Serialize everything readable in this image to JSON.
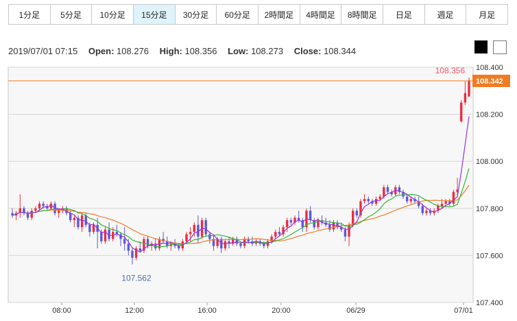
{
  "timeframes": [
    {
      "label": "1分足",
      "active": false
    },
    {
      "label": "5分足",
      "active": false
    },
    {
      "label": "10分足",
      "active": false
    },
    {
      "label": "15分足",
      "active": true
    },
    {
      "label": "30分足",
      "active": false
    },
    {
      "label": "60分足",
      "active": false
    },
    {
      "label": "2時間足",
      "active": false
    },
    {
      "label": "4時間足",
      "active": false
    },
    {
      "label": "8時間足",
      "active": false
    },
    {
      "label": "日足",
      "active": false
    },
    {
      "label": "週足",
      "active": false
    },
    {
      "label": "月足",
      "active": false
    }
  ],
  "ohlc": {
    "datetime": "2019/07/01 07:15",
    "open_label": "Open:",
    "open": "108.276",
    "high_label": "High:",
    "high": "108.356",
    "low_label": "Low:",
    "low": "108.273",
    "close_label": "Close:",
    "close": "108.344"
  },
  "colors": {
    "up": "#ee2d3c",
    "down": "#5a58d8",
    "ma_short": "#9b30d9",
    "ma_mid": "#2eb82e",
    "ma_long": "#f07b23",
    "price_line": "#f07b23",
    "badge": "#f07b23",
    "high_annotation": "#f05a6e",
    "low_annotation": "#4a6fb5"
  },
  "chart_data": {
    "type": "candlestick",
    "y_ticks": [
      "107.400",
      "107.600",
      "107.800",
      "108.000",
      "108.200",
      "108.400"
    ],
    "ylim": [
      107.4,
      108.4
    ],
    "x_ticks": [
      "08:00",
      "12:00",
      "16:00",
      "20:00",
      "06/29",
      "07/01"
    ],
    "current_price": "108.342",
    "high_annotation": "108.356",
    "low_annotation": "107.562",
    "grid": true,
    "candles": [
      [
        107.78,
        107.8,
        107.76,
        107.77
      ],
      [
        107.77,
        107.79,
        107.75,
        107.78
      ],
      [
        107.78,
        107.86,
        107.76,
        107.8
      ],
      [
        107.8,
        107.81,
        107.77,
        107.78
      ],
      [
        107.78,
        107.79,
        107.75,
        107.76
      ],
      [
        107.76,
        107.8,
        107.75,
        107.79
      ],
      [
        107.79,
        107.81,
        107.78,
        107.8
      ],
      [
        107.8,
        107.83,
        107.79,
        107.82
      ],
      [
        107.82,
        107.83,
        107.8,
        107.81
      ],
      [
        107.81,
        107.82,
        107.79,
        107.8
      ],
      [
        107.8,
        107.83,
        107.79,
        107.82
      ],
      [
        107.82,
        107.83,
        107.77,
        107.78
      ],
      [
        107.78,
        107.8,
        107.76,
        107.79
      ],
      [
        107.79,
        107.81,
        107.78,
        107.8
      ],
      [
        107.8,
        107.81,
        107.77,
        107.78
      ],
      [
        107.78,
        107.79,
        107.74,
        107.75
      ],
      [
        107.75,
        107.77,
        107.72,
        107.76
      ],
      [
        107.76,
        107.77,
        107.71,
        107.72
      ],
      [
        107.72,
        107.78,
        107.7,
        107.77
      ],
      [
        107.77,
        107.78,
        107.72,
        107.73
      ],
      [
        107.73,
        107.74,
        107.68,
        107.7
      ],
      [
        107.7,
        107.74,
        107.69,
        107.73
      ],
      [
        107.73,
        107.76,
        107.63,
        107.7
      ],
      [
        107.7,
        107.71,
        107.65,
        107.66
      ],
      [
        107.66,
        107.72,
        107.65,
        107.71
      ],
      [
        107.71,
        107.74,
        107.66,
        107.67
      ],
      [
        107.67,
        107.72,
        107.66,
        107.7
      ],
      [
        107.7,
        107.73,
        107.68,
        107.69
      ],
      [
        107.69,
        107.7,
        107.64,
        107.67
      ],
      [
        107.67,
        107.72,
        107.62,
        107.65
      ],
      [
        107.65,
        107.67,
        107.6,
        107.62
      ],
      [
        107.62,
        107.63,
        107.562,
        107.59
      ],
      [
        107.59,
        107.64,
        107.58,
        107.63
      ],
      [
        107.63,
        107.66,
        107.61,
        107.62
      ],
      [
        107.62,
        107.68,
        107.61,
        107.67
      ],
      [
        107.67,
        107.68,
        107.63,
        107.64
      ],
      [
        107.64,
        107.66,
        107.62,
        107.65
      ],
      [
        107.65,
        107.67,
        107.62,
        107.63
      ],
      [
        107.63,
        107.68,
        107.62,
        107.67
      ],
      [
        107.67,
        107.7,
        107.65,
        107.66
      ],
      [
        107.66,
        107.68,
        107.63,
        107.64
      ],
      [
        107.64,
        107.66,
        107.62,
        107.65
      ],
      [
        107.65,
        107.67,
        107.63,
        107.64
      ],
      [
        107.64,
        107.65,
        107.62,
        107.63
      ],
      [
        107.63,
        107.67,
        107.62,
        107.66
      ],
      [
        107.66,
        107.7,
        107.65,
        107.69
      ],
      [
        107.69,
        107.72,
        107.66,
        107.7
      ],
      [
        107.7,
        107.74,
        107.68,
        107.73
      ],
      [
        107.73,
        107.77,
        107.65,
        107.68
      ],
      [
        107.68,
        107.76,
        107.67,
        107.75
      ],
      [
        107.75,
        107.76,
        107.68,
        107.69
      ],
      [
        107.69,
        107.7,
        107.65,
        107.67
      ],
      [
        107.67,
        107.69,
        107.62,
        107.64
      ],
      [
        107.64,
        107.68,
        107.63,
        107.67
      ],
      [
        107.67,
        107.68,
        107.61,
        107.63
      ],
      [
        107.63,
        107.67,
        107.62,
        107.66
      ],
      [
        107.66,
        107.68,
        107.63,
        107.65
      ],
      [
        107.65,
        107.68,
        107.64,
        107.67
      ],
      [
        107.67,
        107.68,
        107.64,
        107.65
      ],
      [
        107.65,
        107.66,
        107.63,
        107.64
      ],
      [
        107.64,
        107.68,
        107.63,
        107.67
      ],
      [
        107.67,
        107.68,
        107.65,
        107.66
      ],
      [
        107.66,
        107.68,
        107.64,
        107.65
      ],
      [
        107.65,
        107.67,
        107.64,
        107.66
      ],
      [
        107.66,
        107.67,
        107.64,
        107.65
      ],
      [
        107.65,
        107.66,
        107.63,
        107.64
      ],
      [
        107.64,
        107.67,
        107.63,
        107.66
      ],
      [
        107.66,
        107.69,
        107.65,
        107.68
      ],
      [
        107.68,
        107.71,
        107.67,
        107.7
      ],
      [
        107.7,
        107.72,
        107.68,
        107.69
      ],
      [
        107.69,
        107.73,
        107.68,
        107.72
      ],
      [
        107.72,
        107.76,
        107.7,
        107.75
      ],
      [
        107.75,
        107.76,
        107.73,
        107.74
      ],
      [
        107.74,
        107.77,
        107.73,
        107.76
      ],
      [
        107.76,
        107.79,
        107.74,
        107.75
      ],
      [
        107.75,
        107.76,
        107.7,
        107.72
      ],
      [
        107.72,
        107.8,
        107.7,
        107.79
      ],
      [
        107.79,
        107.81,
        107.74,
        107.75
      ],
      [
        107.75,
        107.76,
        107.71,
        107.72
      ],
      [
        107.72,
        107.76,
        107.71,
        107.75
      ],
      [
        107.75,
        107.77,
        107.73,
        107.74
      ],
      [
        107.74,
        107.76,
        107.72,
        107.73
      ],
      [
        107.73,
        107.75,
        107.7,
        107.71
      ],
      [
        107.71,
        107.75,
        107.7,
        107.74
      ],
      [
        107.74,
        107.75,
        107.71,
        107.72
      ],
      [
        107.72,
        107.74,
        107.7,
        107.71
      ],
      [
        107.71,
        107.72,
        107.66,
        107.68
      ],
      [
        107.68,
        107.74,
        107.64,
        107.73
      ],
      [
        107.73,
        107.8,
        107.72,
        107.79
      ],
      [
        107.79,
        107.8,
        107.76,
        107.77
      ],
      [
        107.77,
        107.84,
        107.76,
        107.83
      ],
      [
        107.83,
        107.86,
        107.82,
        107.84
      ],
      [
        107.84,
        107.85,
        107.82,
        107.83
      ],
      [
        107.83,
        107.84,
        107.81,
        107.82
      ],
      [
        107.82,
        107.85,
        107.81,
        107.84
      ],
      [
        107.84,
        107.86,
        107.83,
        107.85
      ],
      [
        107.85,
        107.9,
        107.84,
        107.89
      ],
      [
        107.89,
        107.9,
        107.86,
        107.87
      ],
      [
        107.87,
        107.88,
        107.85,
        107.86
      ],
      [
        107.86,
        107.9,
        107.85,
        107.89
      ],
      [
        107.89,
        107.9,
        107.86,
        107.87
      ],
      [
        107.87,
        107.88,
        107.84,
        107.85
      ],
      [
        107.85,
        107.86,
        107.82,
        107.83
      ],
      [
        107.83,
        107.85,
        107.82,
        107.84
      ],
      [
        107.84,
        107.85,
        107.82,
        107.83
      ],
      [
        107.83,
        107.85,
        107.8,
        107.81
      ],
      [
        107.81,
        107.82,
        107.77,
        107.78
      ],
      [
        107.78,
        107.8,
        107.77,
        107.79
      ],
      [
        107.79,
        107.8,
        107.77,
        107.78
      ],
      [
        107.78,
        107.8,
        107.77,
        107.79
      ],
      [
        107.79,
        107.82,
        107.78,
        107.81
      ],
      [
        107.81,
        107.84,
        107.8,
        107.82
      ],
      [
        107.82,
        107.84,
        107.81,
        107.83
      ],
      [
        107.83,
        107.84,
        107.81,
        107.82
      ],
      [
        107.82,
        107.88,
        107.81,
        107.87
      ],
      [
        107.87,
        107.93,
        107.85,
        107.88
      ],
      [
        108.17,
        108.26,
        108.165,
        108.25
      ],
      [
        108.25,
        108.34,
        108.24,
        108.29
      ],
      [
        108.276,
        108.356,
        108.273,
        108.344
      ]
    ]
  }
}
